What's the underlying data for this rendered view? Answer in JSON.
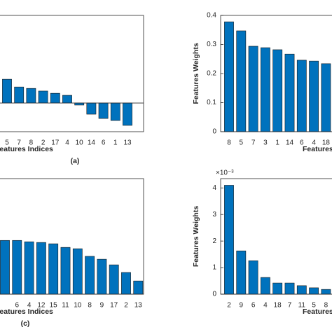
{
  "chart_data": [
    {
      "type": "bar",
      "caption": "(a)",
      "xlabel": "Features Indices",
      "categories": [
        "5",
        "7",
        "8",
        "2",
        "17",
        "4",
        "10",
        "14",
        "6",
        "1",
        "13"
      ],
      "values": [
        1.17,
        0.79,
        0.72,
        0.59,
        0.48,
        0.38,
        -0.1,
        -0.55,
        -0.76,
        -0.86,
        -1.1
      ],
      "ylim": [
        -1.41,
        4.31
      ],
      "color": "#0072bd"
    },
    {
      "type": "bar",
      "ylabel": "Features Weights",
      "xlabel": "Features Indices",
      "categories": [
        "8",
        "5",
        "7",
        "3",
        "1",
        "14",
        "6",
        "4",
        "18"
      ],
      "values": [
        0.378,
        0.347,
        0.294,
        0.289,
        0.282,
        0.267,
        0.246,
        0.243,
        0.234
      ],
      "ylim": [
        0,
        0.4
      ],
      "yticks": [
        0,
        0.1,
        0.2,
        0.3,
        0.4
      ],
      "color": "#0072bd"
    },
    {
      "type": "bar",
      "caption": "(c)",
      "xlabel": "Features Indices",
      "categories": [
        null,
        "6",
        "4",
        "12",
        "15",
        "11",
        "10",
        "8",
        "9",
        "17",
        "2",
        "13"
      ],
      "values": [
        2.4,
        2.4,
        2.34,
        2.31,
        2.25,
        2.09,
        2.03,
        1.69,
        1.56,
        1.31,
        0.97,
        0.59
      ],
      "ylim": [
        0,
        5.16
      ],
      "color": "#0072bd"
    },
    {
      "type": "bar",
      "ylabel": "Features Weights",
      "xlabel": "Features Indices",
      "multiplier": "×10⁻³",
      "categories": [
        "2",
        "9",
        "6",
        "4",
        "18",
        "7",
        "11",
        "5",
        "8"
      ],
      "values": [
        4.1,
        1.63,
        1.26,
        0.63,
        0.42,
        0.42,
        0.32,
        0.24,
        0.18
      ],
      "ylim": [
        0,
        4.35
      ],
      "yticks": [
        0,
        1,
        2,
        3,
        4
      ],
      "color": "#0072bd"
    }
  ]
}
